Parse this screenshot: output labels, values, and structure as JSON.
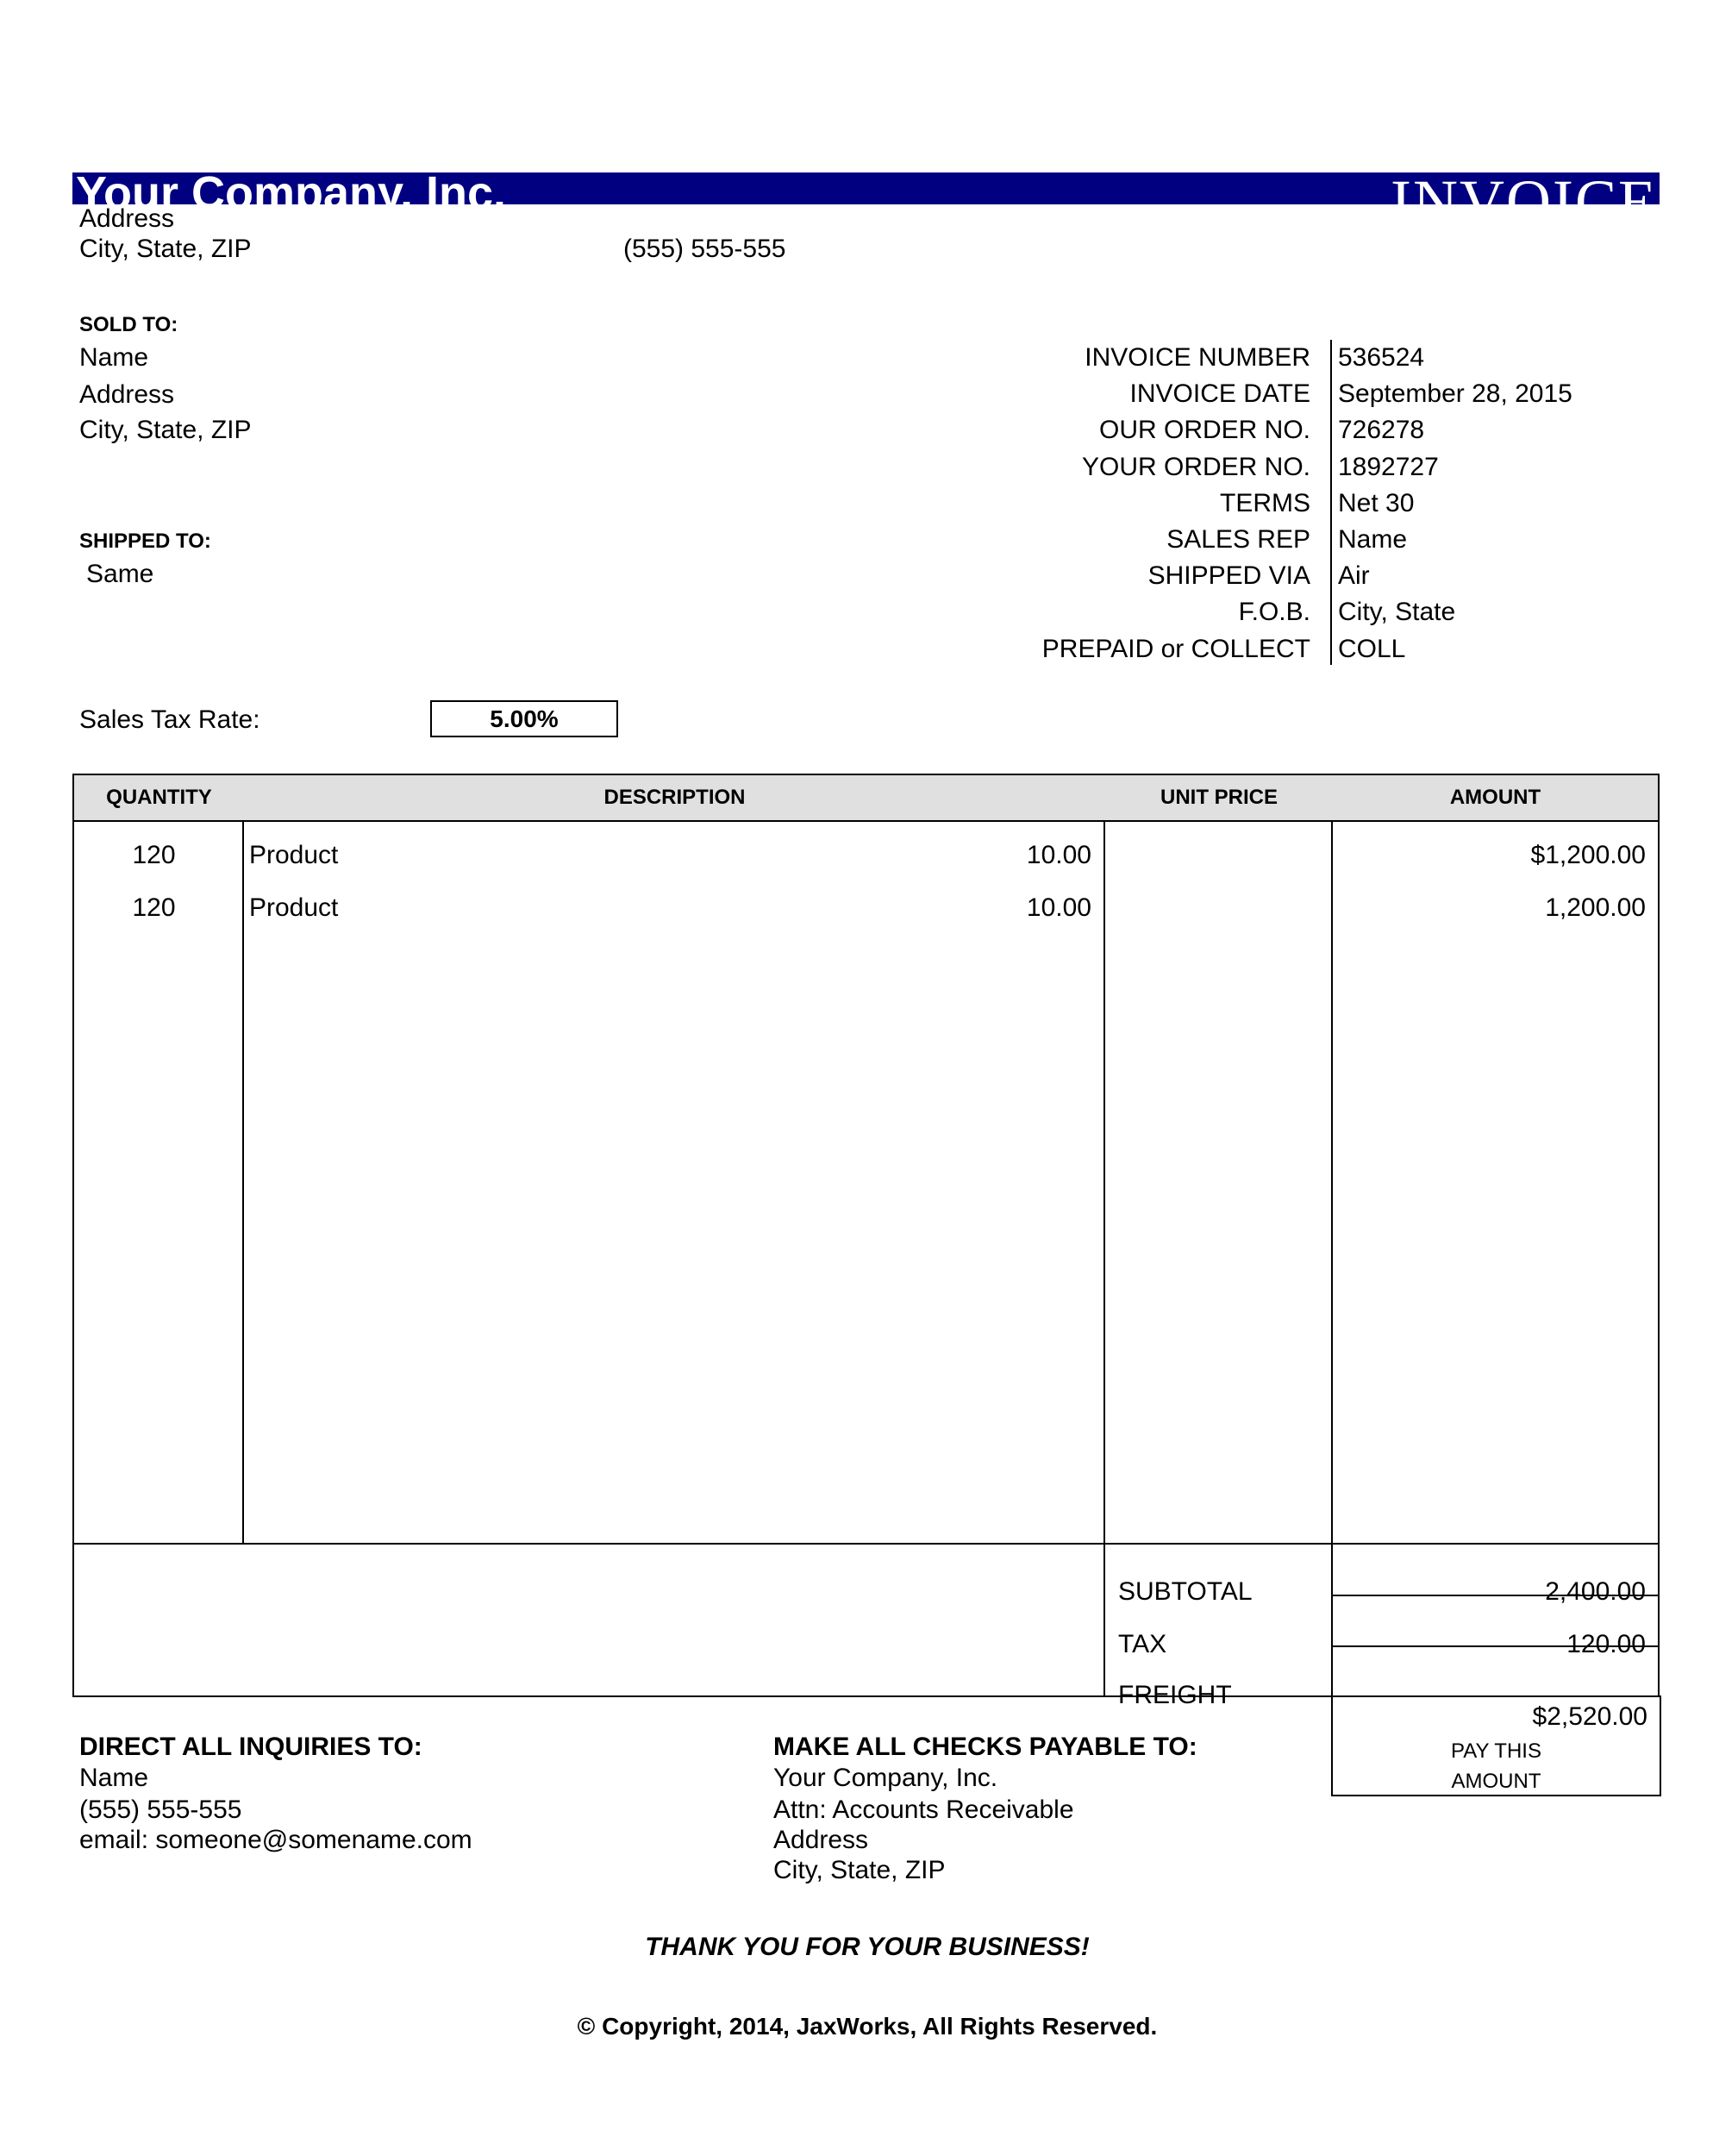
{
  "header": {
    "company": "Your Company, Inc.",
    "title": "INVOICE",
    "address": "Address",
    "city": "City, State, ZIP",
    "phone": "(555) 555-555",
    "banner_color": "#000080"
  },
  "sold_to": {
    "label": "SOLD TO:",
    "name": "Name",
    "address": "Address",
    "city": "City, State, ZIP"
  },
  "shipped_to": {
    "label": "SHIPPED TO:",
    "value": "Same"
  },
  "details": [
    {
      "label": "INVOICE NUMBER",
      "value": "536524"
    },
    {
      "label": "INVOICE DATE",
      "value": "September 28, 2015"
    },
    {
      "label": "OUR ORDER NO.",
      "value": "726278"
    },
    {
      "label": "YOUR ORDER NO.",
      "value": "1892727"
    },
    {
      "label": "TERMS",
      "value": "Net 30"
    },
    {
      "label": "SALES REP",
      "value": "Name"
    },
    {
      "label": "SHIPPED VIA",
      "value": "Air"
    },
    {
      "label": "F.O.B.",
      "value": "City, State"
    },
    {
      "label": "PREPAID or COLLECT",
      "value": "COLL"
    }
  ],
  "tax_rate": {
    "label": "Sales Tax Rate:",
    "value": "5.00%"
  },
  "table": {
    "headers": {
      "quantity": "QUANTITY",
      "description": "DESCRIPTION",
      "unit_price": "UNIT PRICE",
      "amount": "AMOUNT"
    },
    "rows": [
      {
        "quantity": "120",
        "description": "Product",
        "unit_price": "10.00",
        "amount": "$1,200.00"
      },
      {
        "quantity": "120",
        "description": "Product",
        "unit_price": "10.00",
        "amount": "1,200.00"
      }
    ]
  },
  "totals": {
    "subtotal_label": "SUBTOTAL",
    "subtotal": "2,400.00",
    "tax_label": "TAX",
    "tax": "120.00",
    "freight_label": "FREIGHT",
    "freight": "",
    "total": "$2,520.00",
    "pay_line1": "PAY THIS",
    "pay_line2": "AMOUNT"
  },
  "inquiries": {
    "label": "DIRECT ALL INQUIRIES TO:",
    "name": "Name",
    "phone": "(555) 555-555",
    "email": "email: someone@somename.com"
  },
  "checks": {
    "label": "MAKE ALL CHECKS PAYABLE TO:",
    "line1": "Your Company, Inc.",
    "line2": "Attn: Accounts Receivable",
    "line3": "Address",
    "line4": "City, State, ZIP"
  },
  "footer": {
    "thanks": "THANK YOU FOR YOUR BUSINESS!",
    "copyright": "© Copyright, 2014, JaxWorks, All Rights Reserved."
  }
}
